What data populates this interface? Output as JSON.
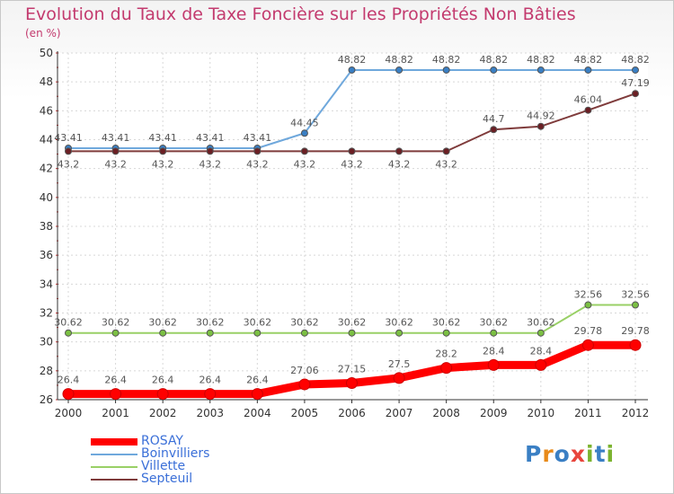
{
  "title": "Evolution du Taux de Taxe Foncière sur les Propriétés Non Bâties",
  "unit_label": "(en %)",
  "logo": {
    "text": "Proxiti",
    "colors": [
      "#3a7fc4",
      "#e88a1a",
      "#3a7fc4",
      "#e8453c",
      "#7bb32e",
      "#3a7fc4",
      "#7bb32e"
    ]
  },
  "chart_data": {
    "type": "line",
    "title": "Evolution du Taux de Taxe Foncière sur les Propriétés Non Bâties",
    "ylabel": "(en %)",
    "x": [
      "2000",
      "2001",
      "2002",
      "2003",
      "2004",
      "2005",
      "2006",
      "2007",
      "2008",
      "2009",
      "2010",
      "2011",
      "2012"
    ],
    "ylim": [
      26,
      50
    ],
    "yticks": [
      26,
      28,
      30,
      32,
      34,
      36,
      38,
      40,
      42,
      44,
      46,
      48,
      50
    ],
    "grid": true,
    "legend_position": "bottom-left",
    "series": [
      {
        "name": "ROSAY",
        "color": "#ff0000",
        "values": [
          26.4,
          26.4,
          26.4,
          26.4,
          26.4,
          27.06,
          27.15,
          27.5,
          28.2,
          28.4,
          28.4,
          29.78,
          29.78
        ],
        "labels": [
          "26.4",
          "26.4",
          "26.4",
          "26.4",
          "26.4",
          "27.06",
          "27.15",
          "27.5",
          "28.2",
          "28.4",
          "28.4",
          "29.78",
          "29.78"
        ]
      },
      {
        "name": "Boinvilliers",
        "color": "#6fa8dc",
        "marker": "#3a7fc4",
        "values": [
          43.41,
          43.41,
          43.41,
          43.41,
          43.41,
          44.45,
          48.82,
          48.82,
          48.82,
          48.82,
          48.82,
          48.82,
          48.82
        ],
        "labels": [
          "43.41",
          "43.41",
          "43.41",
          "43.41",
          "43.41",
          "44.45",
          "48.82",
          "48.82",
          "48.82",
          "48.82",
          "48.82",
          "48.82",
          "48.82"
        ]
      },
      {
        "name": "Villette",
        "color": "#99d066",
        "marker": "#7bc043",
        "values": [
          30.62,
          30.62,
          30.62,
          30.62,
          30.62,
          30.62,
          30.62,
          30.62,
          30.62,
          30.62,
          30.62,
          32.56,
          32.56
        ],
        "labels": [
          "30.62",
          "30.62",
          "30.62",
          "30.62",
          "30.62",
          "30.62",
          "30.62",
          "30.62",
          "30.62",
          "30.62",
          "30.62",
          "32.56",
          "32.56"
        ]
      },
      {
        "name": "Septeuil",
        "color": "#7f3b3b",
        "marker": "#6b1f24",
        "values": [
          43.2,
          43.2,
          43.2,
          43.2,
          43.2,
          43.2,
          43.2,
          43.2,
          43.2,
          44.7,
          44.92,
          46.04,
          47.19
        ],
        "labels": [
          "43.2",
          "43.2",
          "43.2",
          "43.2",
          "43.2",
          "43.2",
          "43.2",
          "43.2",
          "43.2",
          "44.7",
          "44.92",
          "46.04",
          "47.19"
        ]
      }
    ]
  },
  "legend": [
    {
      "name": "ROSAY",
      "color": "#ff0000",
      "thickness": 8
    },
    {
      "name": "Boinvilliers",
      "color": "#6fa8dc",
      "thickness": 2
    },
    {
      "name": "Villette",
      "color": "#99d066",
      "thickness": 2
    },
    {
      "name": "Septeuil",
      "color": "#7f3b3b",
      "thickness": 2
    }
  ]
}
